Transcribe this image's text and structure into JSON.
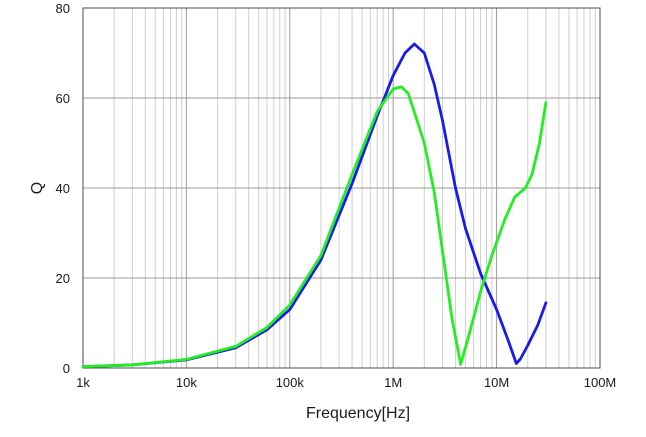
{
  "chart_data": {
    "type": "line",
    "title": "",
    "xlabel": "Frequency[Hz]",
    "ylabel": "Q",
    "x_scale": "log",
    "xlim": [
      1000,
      100000000
    ],
    "ylim": [
      0,
      80
    ],
    "grid": true,
    "x_tick_labels": [
      "1k",
      "10k",
      "100k",
      "1M",
      "10M",
      "100M"
    ],
    "y_tick_labels": [
      "0",
      "20",
      "40",
      "60",
      "80"
    ],
    "series": [
      {
        "color": "#1a1aee",
        "points": [
          [
            1000,
            0.3
          ],
          [
            3000,
            0.7
          ],
          [
            10000,
            1.8
          ],
          [
            30000,
            4.5
          ],
          [
            60000,
            8.5
          ],
          [
            100000,
            13
          ],
          [
            200000,
            24
          ],
          [
            400000,
            41
          ],
          [
            700000,
            56
          ],
          [
            1000000,
            65
          ],
          [
            1300000,
            70
          ],
          [
            1600000,
            72
          ],
          [
            2000000,
            70
          ],
          [
            2500000,
            63
          ],
          [
            3000000,
            55
          ],
          [
            4000000,
            40
          ],
          [
            5000000,
            31
          ],
          [
            7000000,
            21
          ],
          [
            10000000,
            13
          ],
          [
            13000000,
            6
          ],
          [
            15500000,
            1
          ],
          [
            17000000,
            2
          ],
          [
            20000000,
            5
          ],
          [
            25000000,
            9.5
          ],
          [
            30000000,
            14.5
          ]
        ]
      },
      {
        "color": "#22ee22",
        "points": [
          [
            1000,
            0.3
          ],
          [
            3000,
            0.7
          ],
          [
            10000,
            1.9
          ],
          [
            30000,
            4.8
          ],
          [
            60000,
            9
          ],
          [
            100000,
            14
          ],
          [
            200000,
            25
          ],
          [
            400000,
            43
          ],
          [
            700000,
            57
          ],
          [
            1000000,
            62
          ],
          [
            1200000,
            62.5
          ],
          [
            1400000,
            61
          ],
          [
            2000000,
            50
          ],
          [
            2500000,
            39
          ],
          [
            3000000,
            26
          ],
          [
            3700000,
            11
          ],
          [
            4500000,
            0.8
          ],
          [
            5500000,
            8
          ],
          [
            7000000,
            17
          ],
          [
            9000000,
            25
          ],
          [
            12000000,
            33
          ],
          [
            15000000,
            38
          ],
          [
            19000000,
            40
          ],
          [
            22000000,
            43
          ],
          [
            26000000,
            50
          ],
          [
            30000000,
            59
          ]
        ]
      }
    ]
  }
}
